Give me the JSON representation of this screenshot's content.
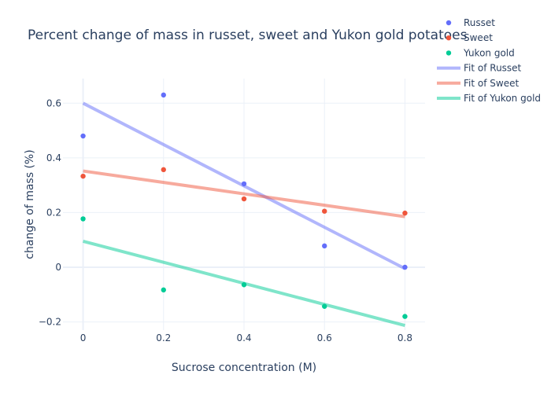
{
  "chart_data": {
    "type": "scatter",
    "title": "Percent change of mass in russet, sweet and Yukon gold potatoes",
    "xlabel": "Sucrose concentration (M)",
    "ylabel": "change of mass (%)",
    "xlim": [
      -0.05,
      0.85
    ],
    "ylim": [
      -0.23,
      0.69
    ],
    "xticks": [
      0,
      0.2,
      0.4,
      0.6,
      0.8
    ],
    "xtick_labels": [
      "0",
      "0.2",
      "0.4",
      "0.6",
      "0.8"
    ],
    "yticks": [
      -0.2,
      0,
      0.2,
      0.4,
      0.6
    ],
    "ytick_labels": [
      "−0.2",
      "0",
      "0.2",
      "0.4",
      "0.6"
    ],
    "grid": true,
    "legend_position": "top-right, outside plot",
    "series": [
      {
        "name": "Russet",
        "kind": "markers",
        "color": "#636efa",
        "x": [
          0,
          0.2,
          0.4,
          0.6,
          0.8
        ],
        "y": [
          0.48,
          0.63,
          0.305,
          0.078,
          0.0
        ]
      },
      {
        "name": "Sweet",
        "kind": "markers",
        "color": "#EF553B",
        "x": [
          0,
          0.2,
          0.4,
          0.6,
          0.8
        ],
        "y": [
          0.333,
          0.357,
          0.25,
          0.205,
          0.198
        ]
      },
      {
        "name": "Yukon gold",
        "kind": "markers",
        "color": "#00cc96",
        "x": [
          0,
          0.2,
          0.4,
          0.6,
          0.8
        ],
        "y": [
          0.177,
          -0.083,
          -0.064,
          -0.143,
          -0.18
        ]
      },
      {
        "name": "Fit of Russet",
        "kind": "line",
        "color": "rgba(99,110,250,0.5)",
        "x": [
          0,
          0.8
        ],
        "y": [
          0.6,
          -0.005
        ]
      },
      {
        "name": "Fit of Sweet",
        "kind": "line",
        "color": "rgba(239,85,59,0.5)",
        "x": [
          0,
          0.8
        ],
        "y": [
          0.352,
          0.185
        ]
      },
      {
        "name": "Fit of Yukon gold",
        "kind": "line",
        "color": "rgba(0,204,150,0.5)",
        "x": [
          0,
          0.8
        ],
        "y": [
          0.095,
          -0.213
        ]
      }
    ]
  }
}
